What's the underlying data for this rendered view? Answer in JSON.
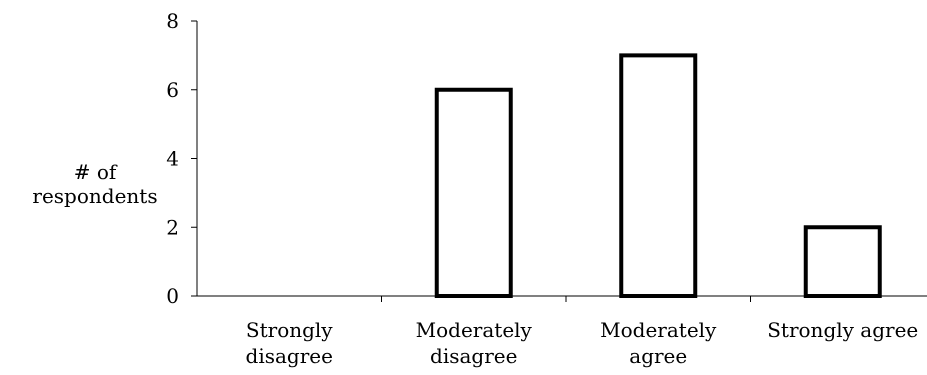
{
  "chart_data": {
    "type": "bar",
    "categories": [
      [
        "Strongly",
        "disagree"
      ],
      [
        "Moderately",
        "disagree"
      ],
      [
        "Moderately",
        "agree"
      ],
      [
        "Strongly agree"
      ]
    ],
    "values": [
      0,
      6,
      7,
      2
    ],
    "ylabel": "# of respondents",
    "xlabel": "",
    "title": "",
    "ylim": [
      0,
      8
    ],
    "yticks": [
      "0",
      "2",
      "4",
      "6",
      "8"
    ],
    "grid": false,
    "legend": "none",
    "bar_fill": "#ffffff",
    "bar_stroke": "#000000"
  }
}
